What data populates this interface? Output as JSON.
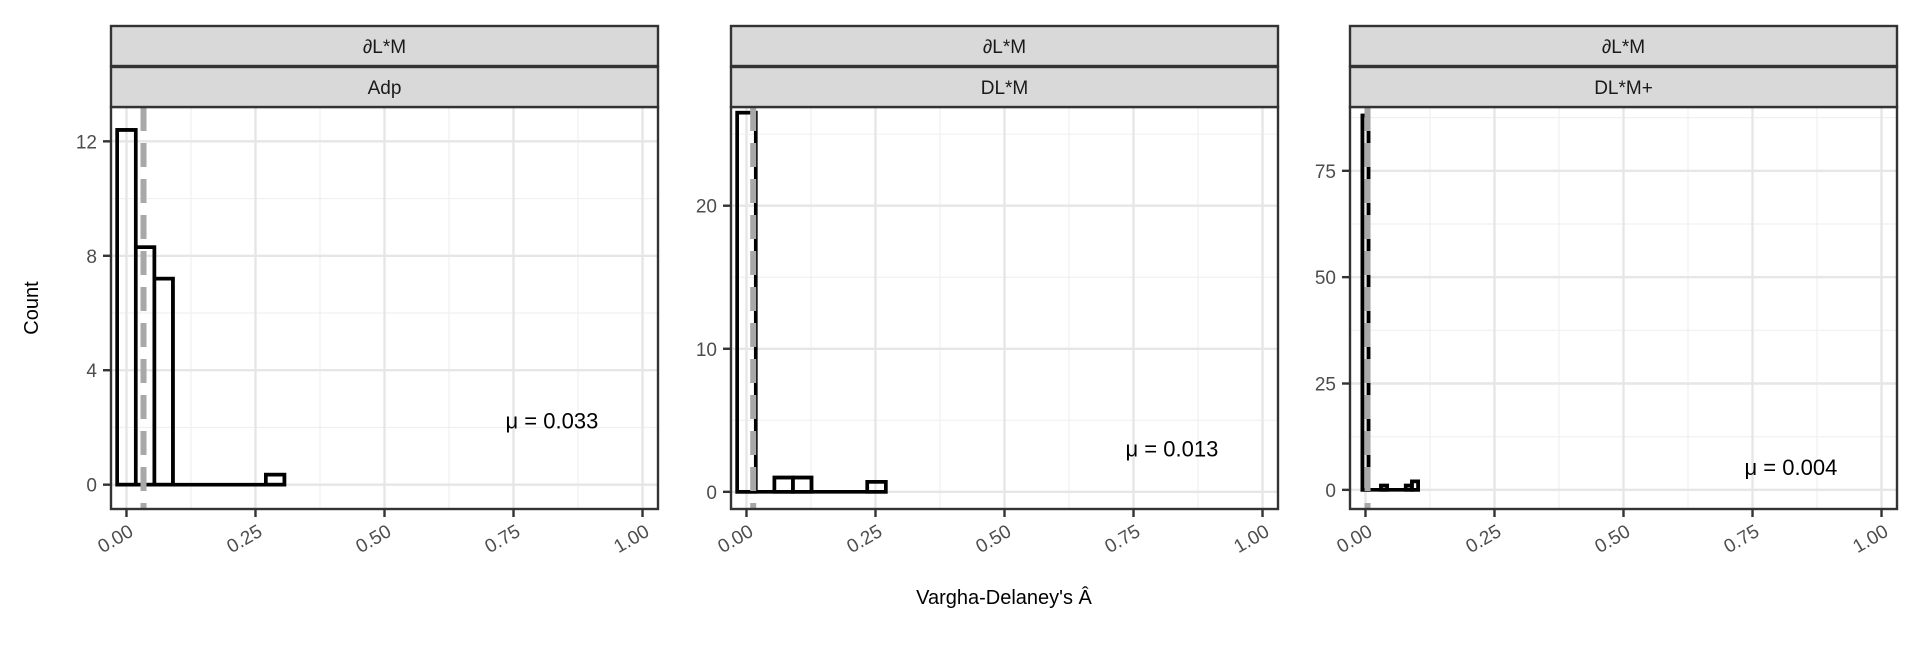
{
  "chart_data": {
    "type": "histogram",
    "xlabel": "Vargha-Delaney's Â",
    "ylabel": "Count",
    "xlim": [
      -0.03,
      1.03
    ],
    "x_ticks": [
      0,
      0.25,
      0.5,
      0.75,
      1
    ],
    "x_tick_labels": [
      "0.00",
      "0.25",
      "0.50",
      "0.75",
      "1.00"
    ],
    "grid": true,
    "panels": [
      {
        "strip_top": "∂L*M",
        "strip_bottom": "Adp",
        "mean": 0.033,
        "annotation": "μ = 0.033",
        "ylim": [
          -0.85,
          13.2
        ],
        "y_ticks": [
          0,
          4,
          8,
          12
        ],
        "y_tick_labels": [
          "0",
          "4",
          "8",
          "12"
        ],
        "bins": [
          {
            "x0": -0.018,
            "x1": 0.018,
            "count": 12.4
          },
          {
            "x0": 0.018,
            "x1": 0.054,
            "count": 8.3
          },
          {
            "x0": 0.054,
            "x1": 0.09,
            "count": 7.2
          },
          {
            "x0": 0.09,
            "x1": 0.126,
            "count": 0
          },
          {
            "x0": 0.126,
            "x1": 0.162,
            "count": 0
          },
          {
            "x0": 0.162,
            "x1": 0.198,
            "count": 0
          },
          {
            "x0": 0.198,
            "x1": 0.234,
            "count": 0
          },
          {
            "x0": 0.234,
            "x1": 0.27,
            "count": 0
          },
          {
            "x0": 0.27,
            "x1": 0.306,
            "count": 0.35
          }
        ]
      },
      {
        "strip_top": "∂L*M",
        "strip_bottom": "DL*M",
        "mean": 0.013,
        "annotation": "μ = 0.013",
        "ylim": [
          -1.2,
          26.9
        ],
        "y_ticks": [
          0,
          10,
          20
        ],
        "y_tick_labels": [
          "0",
          "10",
          "20"
        ],
        "bins": [
          {
            "x0": -0.018,
            "x1": 0.018,
            "count": 26.5
          },
          {
            "x0": 0.018,
            "x1": 0.054,
            "count": 0
          },
          {
            "x0": 0.054,
            "x1": 0.09,
            "count": 1
          },
          {
            "x0": 0.09,
            "x1": 0.126,
            "count": 1
          },
          {
            "x0": 0.126,
            "x1": 0.162,
            "count": 0
          },
          {
            "x0": 0.162,
            "x1": 0.198,
            "count": 0
          },
          {
            "x0": 0.198,
            "x1": 0.234,
            "count": 0
          },
          {
            "x0": 0.234,
            "x1": 0.27,
            "count": 0.7
          }
        ]
      },
      {
        "strip_top": "∂L*M",
        "strip_bottom": "DL*M+",
        "mean": 0.004,
        "annotation": "μ = 0.004",
        "ylim": [
          -4.5,
          90
        ],
        "y_ticks": [
          0,
          25,
          50,
          75
        ],
        "y_tick_labels": [
          "0",
          "25",
          "50",
          "75"
        ],
        "bins": [
          {
            "x0": -0.006,
            "x1": 0.006,
            "count": 88
          },
          {
            "x0": 0.006,
            "x1": 0.018,
            "count": 0
          },
          {
            "x0": 0.018,
            "x1": 0.03,
            "count": 0
          },
          {
            "x0": 0.03,
            "x1": 0.042,
            "count": 1
          },
          {
            "x0": 0.042,
            "x1": 0.054,
            "count": 0
          },
          {
            "x0": 0.054,
            "x1": 0.066,
            "count": 0
          },
          {
            "x0": 0.066,
            "x1": 0.078,
            "count": 0
          },
          {
            "x0": 0.078,
            "x1": 0.09,
            "count": 1
          },
          {
            "x0": 0.09,
            "x1": 0.102,
            "count": 2
          }
        ]
      }
    ]
  }
}
